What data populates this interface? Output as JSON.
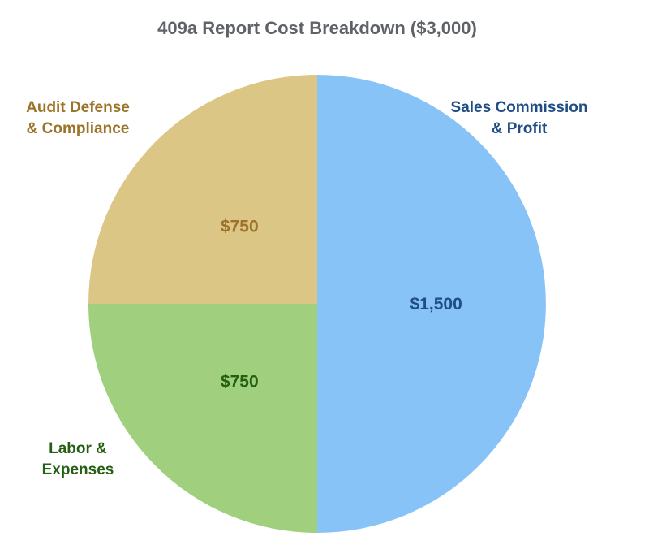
{
  "chart_data": {
    "type": "pie",
    "title": "409a Report Cost Breakdown ($3,000)",
    "total": 3000,
    "start_angle_deg": 0,
    "direction": "clockwise",
    "slices": [
      {
        "name": "Sales Commission & Profit",
        "label_lines": [
          "Sales Commission",
          "& Profit"
        ],
        "value": 1500,
        "value_label": "$1,500",
        "color": "#88c3f7",
        "text_color": "#1f4e85"
      },
      {
        "name": "Labor & Expenses",
        "label_lines": [
          "Labor &",
          "Expenses"
        ],
        "value": 750,
        "value_label": "$750",
        "color": "#a0d07e",
        "text_color": "#245f14"
      },
      {
        "name": "Audit Defense & Compliance",
        "label_lines": [
          "Audit Defense",
          "& Compliance"
        ],
        "value": 750,
        "value_label": "$750",
        "color": "#dcc686",
        "text_color": "#9c7328"
      }
    ]
  }
}
